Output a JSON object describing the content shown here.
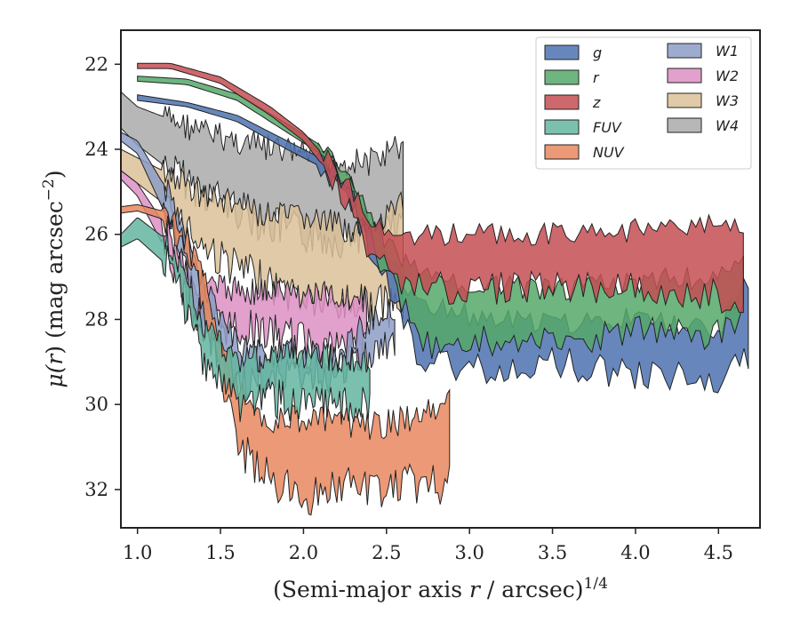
{
  "chart_data": {
    "type": "area",
    "xlabel_main": "(Semi-major axis ",
    "xlabel_var": "r",
    "xlabel_tail": " / arcsec)",
    "xlabel_exp": "1/4",
    "ylabel_main": "μ(",
    "ylabel_var": "r",
    "ylabel_tail": ") (mag arcsec",
    "ylabel_exp": "−2",
    "ylabel_close": ")",
    "xlim": [
      0.9,
      4.75
    ],
    "ylim": [
      32.9,
      21.2
    ],
    "y_inverted": true,
    "grid": false,
    "legend_position": "top-right",
    "x_ticks": [
      1.0,
      1.5,
      2.0,
      2.5,
      3.0,
      3.5,
      4.0,
      4.5
    ],
    "x_tick_labels": [
      "1.0",
      "1.5",
      "2.0",
      "2.5",
      "3.0",
      "3.5",
      "4.0",
      "4.5"
    ],
    "y_ticks": [
      22,
      24,
      26,
      28,
      30,
      32
    ],
    "y_tick_labels": [
      "22",
      "24",
      "26",
      "28",
      "30",
      "32"
    ],
    "series": [
      {
        "name": "g",
        "color": "#4c72b0",
        "x_start": 1.0,
        "x_end": 4.68,
        "upper": [
          [
            1.0,
            22.72
          ],
          [
            1.3,
            22.9
          ],
          [
            1.6,
            23.2
          ],
          [
            1.9,
            23.8
          ],
          [
            2.1,
            24.2
          ],
          [
            2.3,
            24.9
          ],
          [
            2.5,
            26.5
          ],
          [
            2.7,
            27.6
          ],
          [
            3.0,
            27.9
          ],
          [
            3.5,
            28.1
          ],
          [
            4.0,
            28.0
          ],
          [
            4.5,
            28.2
          ],
          [
            4.68,
            27.1
          ]
        ],
        "lower": [
          [
            1.0,
            22.85
          ],
          [
            1.3,
            23.0
          ],
          [
            1.6,
            23.35
          ],
          [
            1.9,
            24.0
          ],
          [
            2.1,
            24.4
          ],
          [
            2.3,
            25.3
          ],
          [
            2.5,
            27.2
          ],
          [
            2.7,
            29.0
          ],
          [
            3.0,
            29.2
          ],
          [
            3.5,
            29.0
          ],
          [
            4.0,
            29.3
          ],
          [
            4.5,
            29.4
          ],
          [
            4.68,
            29.0
          ]
        ]
      },
      {
        "name": "r",
        "color": "#55a868",
        "x_start": 1.0,
        "x_end": 4.65,
        "upper": [
          [
            1.0,
            22.28
          ],
          [
            1.3,
            22.35
          ],
          [
            1.6,
            22.7
          ],
          [
            1.9,
            23.4
          ],
          [
            2.1,
            23.9
          ],
          [
            2.3,
            24.8
          ],
          [
            2.5,
            26.2
          ],
          [
            2.7,
            27.0
          ],
          [
            3.0,
            27.2
          ],
          [
            3.5,
            27.3
          ],
          [
            4.0,
            27.1
          ],
          [
            4.5,
            27.0
          ],
          [
            4.65,
            26.5
          ]
        ],
        "lower": [
          [
            1.0,
            22.4
          ],
          [
            1.3,
            22.48
          ],
          [
            1.6,
            22.85
          ],
          [
            1.9,
            23.6
          ],
          [
            2.1,
            24.1
          ],
          [
            2.3,
            25.1
          ],
          [
            2.5,
            26.9
          ],
          [
            2.7,
            28.6
          ],
          [
            3.0,
            28.5
          ],
          [
            3.5,
            28.6
          ],
          [
            4.0,
            28.3
          ],
          [
            4.5,
            28.4
          ],
          [
            4.65,
            27.9
          ]
        ]
      },
      {
        "name": "z",
        "color": "#c44e52",
        "x_start": 1.0,
        "x_end": 4.65,
        "upper": [
          [
            1.0,
            21.98
          ],
          [
            1.2,
            21.98
          ],
          [
            1.5,
            22.3
          ],
          [
            1.8,
            23.0
          ],
          [
            2.0,
            23.6
          ],
          [
            2.2,
            24.5
          ],
          [
            2.4,
            25.6
          ],
          [
            2.6,
            26.0
          ],
          [
            3.0,
            26.0
          ],
          [
            3.5,
            26.0
          ],
          [
            4.0,
            25.9
          ],
          [
            4.5,
            25.8
          ],
          [
            4.65,
            25.7
          ]
        ],
        "lower": [
          [
            1.0,
            22.1
          ],
          [
            1.2,
            22.1
          ],
          [
            1.5,
            22.45
          ],
          [
            1.8,
            23.2
          ],
          [
            2.0,
            23.8
          ],
          [
            2.2,
            24.8
          ],
          [
            2.4,
            26.3
          ],
          [
            2.6,
            27.2
          ],
          [
            3.0,
            27.3
          ],
          [
            3.5,
            27.2
          ],
          [
            4.0,
            27.3
          ],
          [
            4.5,
            27.4
          ],
          [
            4.65,
            27.9
          ]
        ]
      },
      {
        "name": "FUV",
        "color": "#64b5a0",
        "x_start": 0.9,
        "x_end": 2.4,
        "upper": [
          [
            0.9,
            26.0
          ],
          [
            1.0,
            25.6
          ],
          [
            1.2,
            26.2
          ],
          [
            1.4,
            28.2
          ],
          [
            1.6,
            28.9
          ],
          [
            1.8,
            28.9
          ],
          [
            2.0,
            28.8
          ],
          [
            2.2,
            28.9
          ],
          [
            2.4,
            29.0
          ]
        ],
        "lower": [
          [
            0.9,
            26.3
          ],
          [
            1.0,
            26.1
          ],
          [
            1.2,
            26.8
          ],
          [
            1.4,
            28.9
          ],
          [
            1.6,
            30.0
          ],
          [
            1.8,
            29.8
          ],
          [
            2.0,
            30.1
          ],
          [
            2.2,
            30.0
          ],
          [
            2.4,
            30.1
          ]
        ]
      },
      {
        "name": "NUV",
        "color": "#e8875e",
        "x_start": 0.9,
        "x_end": 2.88,
        "upper": [
          [
            0.9,
            25.35
          ],
          [
            1.0,
            25.3
          ],
          [
            1.2,
            25.5
          ],
          [
            1.4,
            27.0
          ],
          [
            1.6,
            29.6
          ],
          [
            1.8,
            30.4
          ],
          [
            2.0,
            30.3
          ],
          [
            2.2,
            30.4
          ],
          [
            2.4,
            30.5
          ],
          [
            2.6,
            30.4
          ],
          [
            2.88,
            30.0
          ]
        ],
        "lower": [
          [
            0.9,
            25.5
          ],
          [
            1.0,
            25.45
          ],
          [
            1.2,
            25.7
          ],
          [
            1.4,
            27.6
          ],
          [
            1.6,
            31.0
          ],
          [
            1.8,
            31.8
          ],
          [
            2.0,
            32.2
          ],
          [
            2.2,
            31.9
          ],
          [
            2.4,
            32.0
          ],
          [
            2.6,
            31.9
          ],
          [
            2.88,
            31.9
          ]
        ]
      },
      {
        "name": "W1",
        "color": "#8c9ec6",
        "x_start": 0.9,
        "x_end": 2.55,
        "upper": [
          [
            0.9,
            23.6
          ],
          [
            1.0,
            23.8
          ],
          [
            1.2,
            25.1
          ],
          [
            1.4,
            27.2
          ],
          [
            1.6,
            28.6
          ],
          [
            1.8,
            28.8
          ],
          [
            2.0,
            28.8
          ],
          [
            2.2,
            28.9
          ],
          [
            2.4,
            28.0
          ],
          [
            2.55,
            27.7
          ]
        ],
        "lower": [
          [
            0.9,
            23.8
          ],
          [
            1.0,
            24.1
          ],
          [
            1.2,
            25.8
          ],
          [
            1.4,
            28.2
          ],
          [
            1.6,
            29.6
          ],
          [
            1.8,
            29.2
          ],
          [
            2.0,
            29.2
          ],
          [
            2.2,
            29.3
          ],
          [
            2.4,
            28.8
          ],
          [
            2.55,
            28.6
          ]
        ]
      },
      {
        "name": "W2",
        "color": "#dd8fc4",
        "x_start": 0.9,
        "x_end": 2.38,
        "upper": [
          [
            0.9,
            24.5
          ],
          [
            1.0,
            24.8
          ],
          [
            1.2,
            26.0
          ],
          [
            1.35,
            27.2
          ],
          [
            1.6,
            27.3
          ],
          [
            2.0,
            27.4
          ],
          [
            2.38,
            27.5
          ]
        ],
        "lower": [
          [
            0.9,
            24.7
          ],
          [
            1.0,
            25.1
          ],
          [
            1.2,
            26.6
          ],
          [
            1.35,
            28.0
          ],
          [
            1.6,
            28.2
          ],
          [
            2.0,
            28.5
          ],
          [
            2.38,
            28.8
          ]
        ]
      },
      {
        "name": "W3",
        "color": "#dcc198",
        "x_start": 0.9,
        "x_end": 2.6,
        "upper": [
          [
            0.9,
            24.0
          ],
          [
            1.0,
            24.2
          ],
          [
            1.2,
            24.6
          ],
          [
            1.4,
            25.1
          ],
          [
            1.6,
            25.3
          ],
          [
            1.8,
            25.6
          ],
          [
            2.0,
            25.6
          ],
          [
            2.2,
            25.8
          ],
          [
            2.4,
            26.0
          ],
          [
            2.6,
            25.3
          ]
        ],
        "lower": [
          [
            0.9,
            24.5
          ],
          [
            1.0,
            24.8
          ],
          [
            1.2,
            25.4
          ],
          [
            1.4,
            26.3
          ],
          [
            1.6,
            26.8
          ],
          [
            1.8,
            27.2
          ],
          [
            2.0,
            27.5
          ],
          [
            2.2,
            27.7
          ],
          [
            2.4,
            27.6
          ],
          [
            2.6,
            27.8
          ]
        ]
      },
      {
        "name": "W4",
        "color": "#aaaaaa",
        "x_start": 0.9,
        "x_end": 2.6,
        "upper": [
          [
            0.9,
            22.65
          ],
          [
            1.0,
            23.0
          ],
          [
            1.2,
            23.3
          ],
          [
            1.4,
            23.6
          ],
          [
            1.6,
            23.8
          ],
          [
            1.8,
            24.0
          ],
          [
            2.0,
            24.1
          ],
          [
            2.2,
            24.3
          ],
          [
            2.4,
            24.3
          ],
          [
            2.6,
            23.9
          ]
        ],
        "lower": [
          [
            0.9,
            23.5
          ],
          [
            1.0,
            23.9
          ],
          [
            1.2,
            24.5
          ],
          [
            1.4,
            25.0
          ],
          [
            1.6,
            25.4
          ],
          [
            1.8,
            25.8
          ],
          [
            2.0,
            26.0
          ],
          [
            2.2,
            26.1
          ],
          [
            2.4,
            25.9
          ],
          [
            2.6,
            25.9
          ]
        ]
      }
    ]
  }
}
